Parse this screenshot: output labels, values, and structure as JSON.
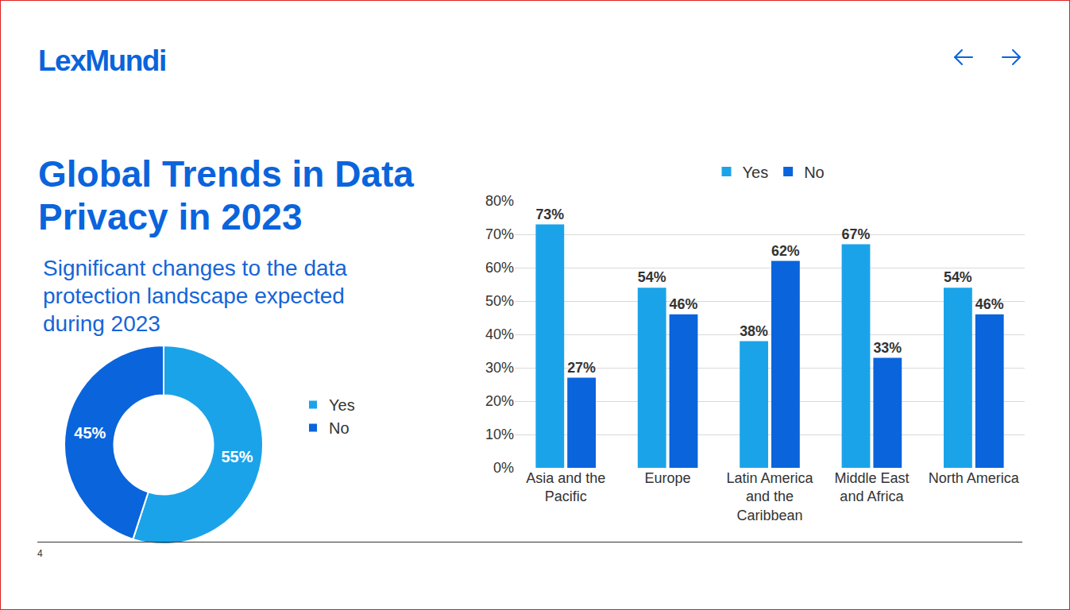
{
  "header": {
    "logo": "LexMundi",
    "title": "Global Trends in Data Privacy in 2023",
    "subtitle": "Significant changes to the data protection landscape expected during 2023",
    "page": 4
  },
  "chart_data": [
    {
      "type": "pie",
      "categories": [
        "Yes",
        "No"
      ],
      "values": [
        55,
        45
      ],
      "value_labels": [
        "55%",
        "45%"
      ],
      "colors": [
        "#1BA3E9",
        "#0A64DC"
      ],
      "data_labels": true,
      "legend": "right"
    },
    {
      "type": "bar",
      "categories": [
        "Asia and the Pacific",
        "Europe",
        "Latin America and the Caribbean",
        "Middle East and Africa",
        "North America"
      ],
      "series": [
        {
          "name": "Yes",
          "color": "#1BA3E9",
          "values": [
            73,
            54,
            38,
            67,
            54
          ],
          "value_labels": [
            "73%",
            "54%",
            "38%",
            "67%",
            "54%"
          ]
        },
        {
          "name": "No",
          "color": "#0A64DC",
          "values": [
            27,
            46,
            62,
            33,
            46
          ],
          "value_labels": [
            "27%",
            "46%",
            "62%",
            "33%",
            "46%"
          ]
        }
      ],
      "ylim": [
        0,
        80
      ],
      "yticks": [
        {
          "value": 0,
          "label": "0%"
        },
        {
          "value": 10,
          "label": "10%"
        },
        {
          "value": 20,
          "label": "20%"
        },
        {
          "value": 30,
          "label": "30%"
        },
        {
          "value": 40,
          "label": "40%"
        },
        {
          "value": 50,
          "label": "50%"
        },
        {
          "value": 60,
          "label": "60%"
        },
        {
          "value": 70,
          "label": "70%"
        },
        {
          "value": 80,
          "label": "80%"
        }
      ],
      "grid": true,
      "legend": "top",
      "data_labels": true
    }
  ]
}
